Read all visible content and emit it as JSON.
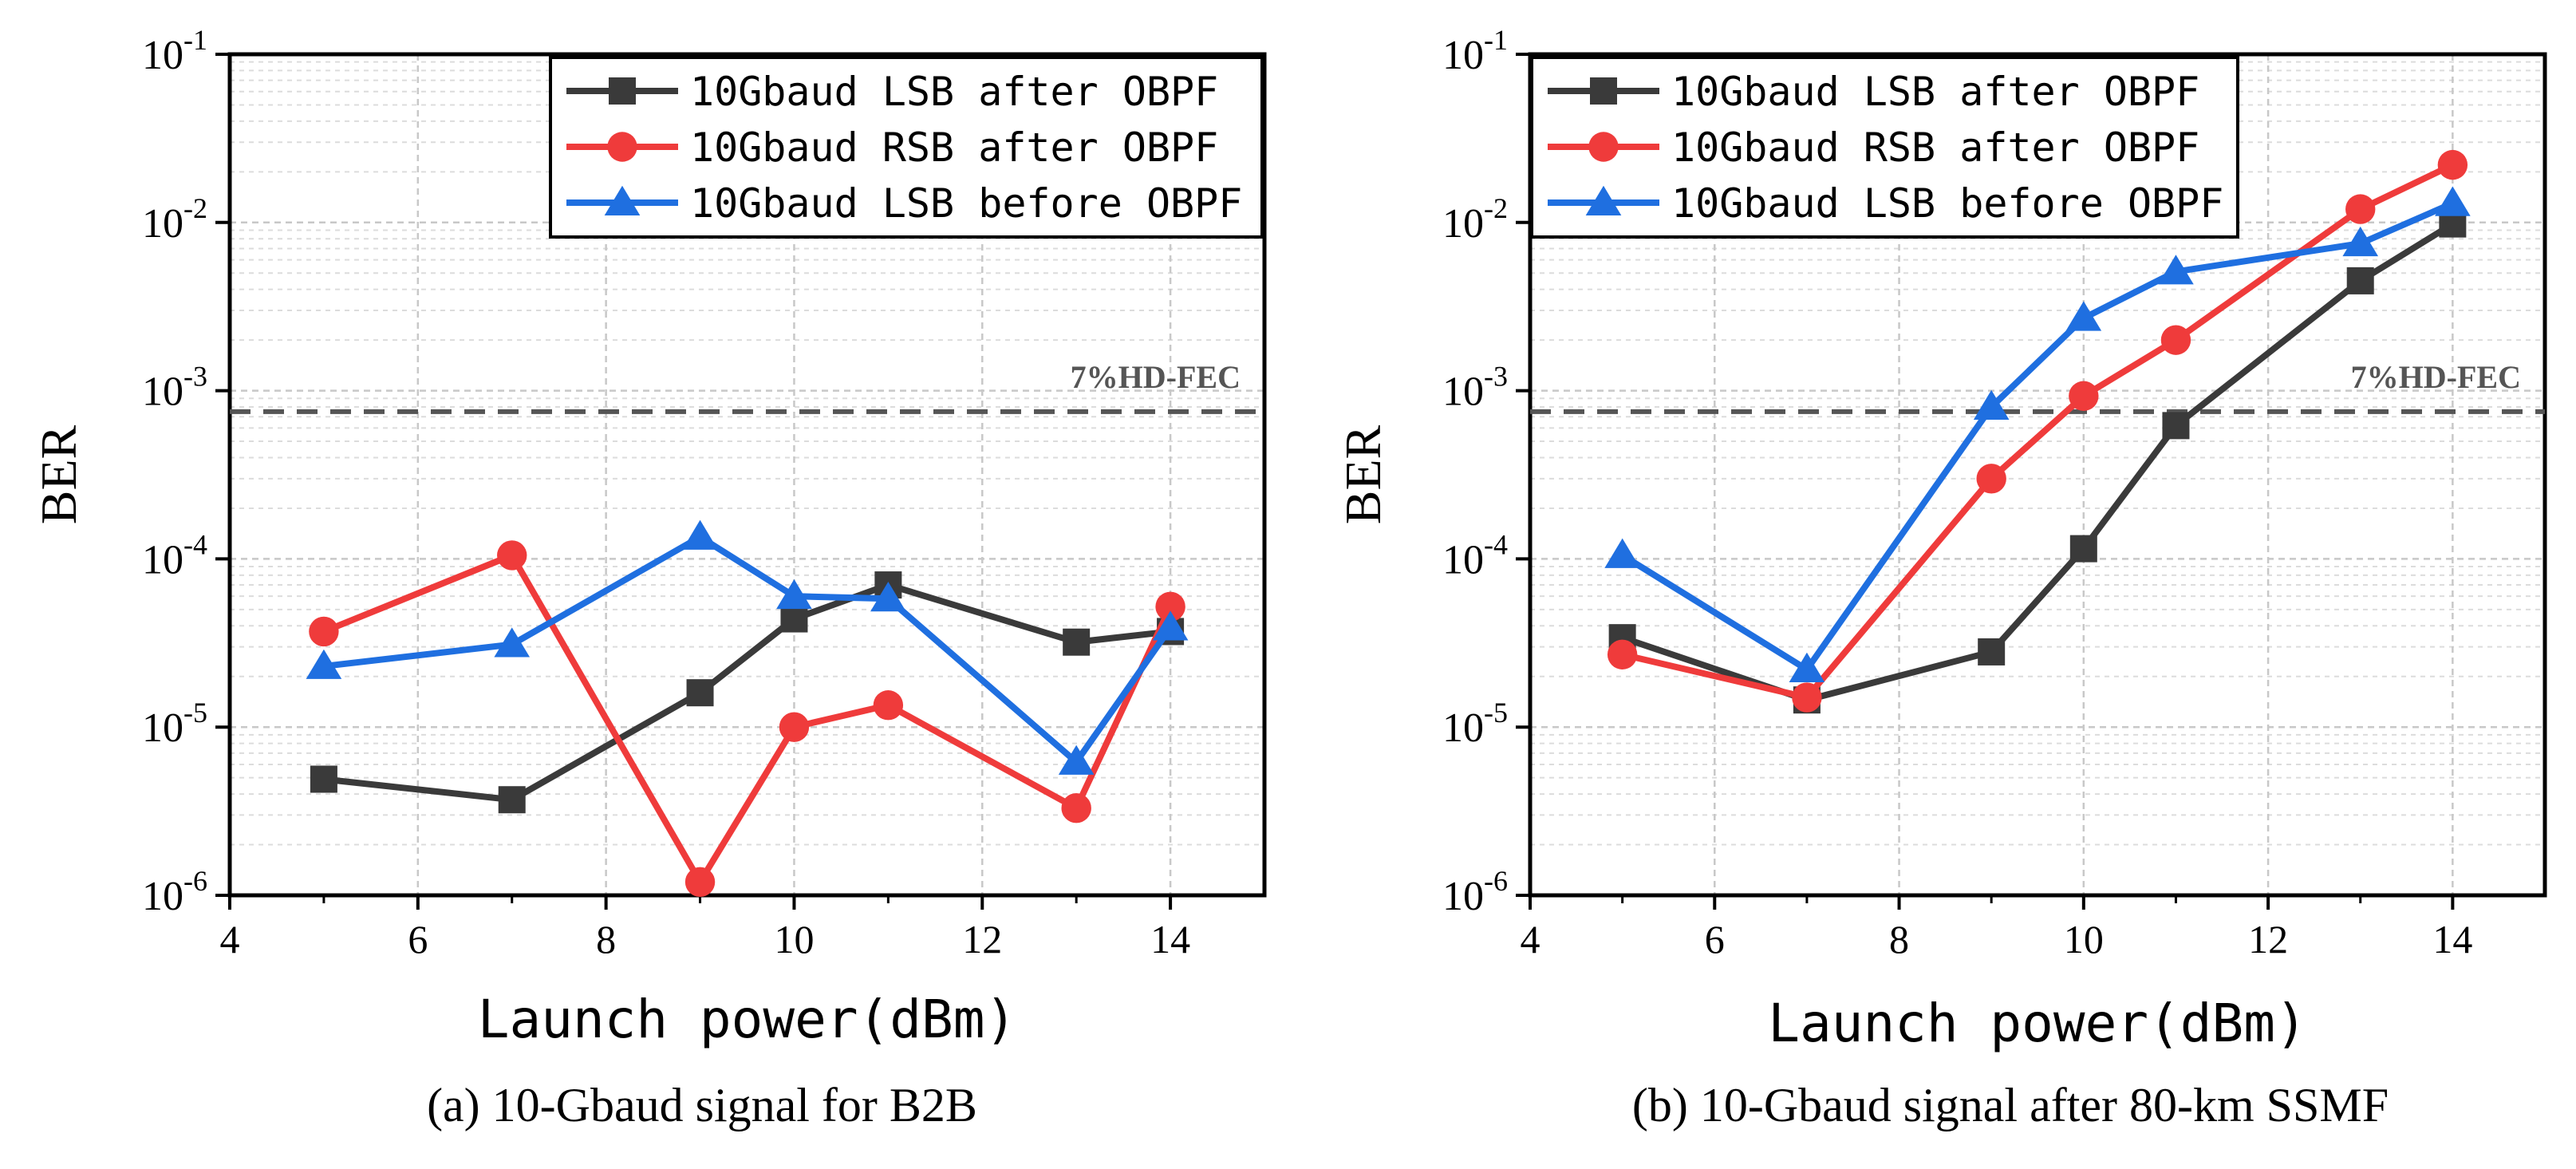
{
  "chart_data": [
    {
      "type": "line",
      "panel": "a",
      "caption": "(a) 10-Gbaud signal for B2B",
      "xlabel": "Launch power(dBm)",
      "ylabel": "BER",
      "xlim": [
        4,
        15
      ],
      "ylim_log10": [
        -6,
        -1
      ],
      "x_ticks": [
        4,
        6,
        8,
        10,
        12,
        14
      ],
      "y_ticks_exp": [
        -6,
        -5,
        -4,
        -3,
        -2,
        -1
      ],
      "y_tick_base": "10",
      "grid": true,
      "legend_position": "top-right",
      "threshold": {
        "label": "7%HD-FEC",
        "value": 0.00075
      },
      "series": [
        {
          "name": "10Gbaud LSB after OBPF",
          "color": "#3a3a3a",
          "marker": "square",
          "x": [
            5,
            7,
            9,
            10,
            11,
            13,
            14
          ],
          "y": [
            4.9e-06,
            3.7e-06,
            1.6e-05,
            4.4e-05,
            7e-05,
            3.2e-05,
            3.7e-05
          ]
        },
        {
          "name": "10Gbaud RSB after OBPF",
          "color": "#ef3b3b",
          "marker": "circle",
          "x": [
            5,
            7,
            9,
            10,
            11,
            13,
            14
          ],
          "y": [
            3.7e-05,
            0.000105,
            1.2e-06,
            1e-05,
            1.35e-05,
            3.3e-06,
            5.2e-05
          ]
        },
        {
          "name": "10Gbaud LSB before OBPF",
          "color": "#1f6fe0",
          "marker": "triangle",
          "x": [
            5,
            7,
            9,
            10,
            11,
            13,
            14
          ],
          "y": [
            2.3e-05,
            3.1e-05,
            0.000135,
            6e-05,
            5.8e-05,
            6.2e-06,
            3.9e-05
          ]
        }
      ]
    },
    {
      "type": "line",
      "panel": "b",
      "caption": "(b) 10-Gbaud signal after 80-km SSMF",
      "xlabel": "Launch power(dBm)",
      "ylabel": "BER",
      "xlim": [
        4,
        15
      ],
      "ylim_log10": [
        -6,
        -1
      ],
      "x_ticks": [
        4,
        6,
        8,
        10,
        12,
        14
      ],
      "y_ticks_exp": [
        -6,
        -5,
        -4,
        -3,
        -2,
        -1
      ],
      "y_tick_base": "10",
      "grid": true,
      "legend_position": "top-left",
      "threshold": {
        "label": "7%HD-FEC",
        "value": 0.00075
      },
      "series": [
        {
          "name": "10Gbaud LSB after OBPF",
          "color": "#3a3a3a",
          "marker": "square",
          "x": [
            5,
            7,
            9,
            10,
            11,
            13,
            14
          ],
          "y": [
            3.4e-05,
            1.45e-05,
            2.8e-05,
            0.000115,
            0.00062,
            0.0045,
            0.0098
          ]
        },
        {
          "name": "10Gbaud RSB after OBPF",
          "color": "#ef3b3b",
          "marker": "circle",
          "x": [
            5,
            7,
            9,
            10,
            11,
            13,
            14
          ],
          "y": [
            2.7e-05,
            1.5e-05,
            0.0003,
            0.00093,
            0.002,
            0.012,
            0.022
          ]
        },
        {
          "name": "10Gbaud LSB before OBPF",
          "color": "#1f6fe0",
          "marker": "triangle",
          "x": [
            5,
            7,
            9,
            10,
            11,
            13,
            14
          ],
          "y": [
            0.000105,
            2.2e-05,
            0.0008,
            0.0027,
            0.0051,
            0.0075,
            0.013
          ]
        }
      ]
    }
  ]
}
